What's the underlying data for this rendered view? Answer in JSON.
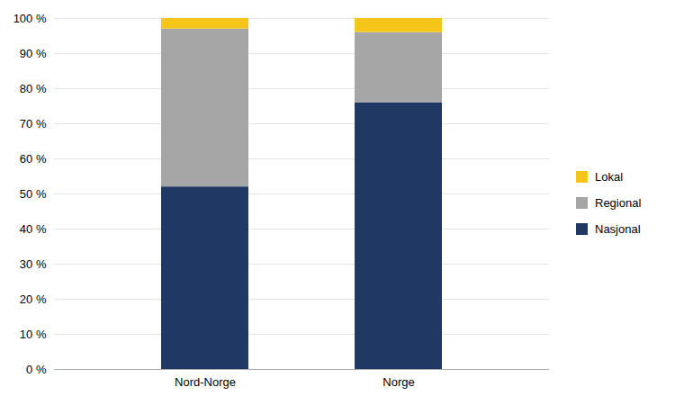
{
  "chart_data": {
    "type": "bar",
    "stacked": true,
    "categories": [
      "Nord-Norge",
      "Norge"
    ],
    "series": [
      {
        "name": "Nasjonal",
        "color": "#1F3864",
        "values": [
          0.52,
          0.76
        ]
      },
      {
        "name": "Regional",
        "color": "#A6A6A6",
        "values": [
          0.45,
          0.2
        ]
      },
      {
        "name": "Lokal",
        "color": "#F5C518",
        "values": [
          0.03,
          0.04
        ]
      }
    ],
    "ylim": [
      0.0,
      1.0
    ],
    "yticks": [
      {
        "value": 0.0,
        "label": "0 %"
      },
      {
        "value": 0.1,
        "label": "10 %"
      },
      {
        "value": 0.2,
        "label": "20 %"
      },
      {
        "value": 0.3,
        "label": "30 %"
      },
      {
        "value": 0.4,
        "label": "40 %"
      },
      {
        "value": 0.5,
        "label": "50 %"
      },
      {
        "value": 0.6,
        "label": "60 %"
      },
      {
        "value": 0.7,
        "label": "70 %"
      },
      {
        "value": 0.8,
        "label": "80 %"
      },
      {
        "value": 0.9,
        "label": "90 %"
      },
      {
        "value": 1.0,
        "label": "100 %"
      }
    ],
    "grid": true,
    "legend": "right"
  }
}
